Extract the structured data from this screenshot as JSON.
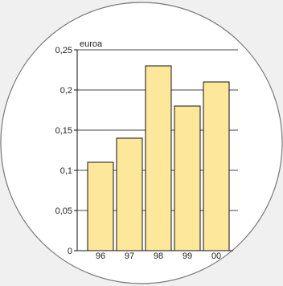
{
  "chart_data": {
    "type": "bar",
    "categories": [
      "96",
      "97",
      "98",
      "99",
      "00"
    ],
    "values": [
      0.11,
      0.14,
      0.23,
      0.18,
      0.21
    ],
    "ylabel": "euroa",
    "ylim": [
      0,
      0.25
    ],
    "yticks": [
      0,
      0.05,
      0.1,
      0.15,
      0.2,
      0.25
    ],
    "ytick_labels": [
      "0",
      "0,05",
      "0,1",
      "0,15",
      "0,2",
      "0,25"
    ],
    "grid": true,
    "colors": {
      "bar_fill": "#fde79a",
      "bar_stroke": "#111111",
      "grid": "#444444",
      "circle_fill": "#ffffff",
      "circle_stroke": "#777777",
      "background": "#f0f0f0"
    }
  }
}
